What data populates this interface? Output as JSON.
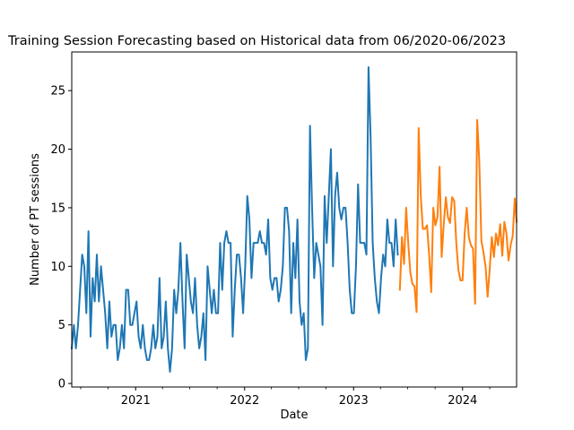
{
  "chart_data": {
    "type": "line",
    "title": "Training Session Forecasting based on Historical data from 06/2020-06/2023",
    "xlabel": "Date",
    "ylabel": "Number of PT sessions",
    "x_ticks": [
      "2021",
      "2022",
      "2023",
      "2024"
    ],
    "y_ticks": [
      "0",
      "5",
      "10",
      "15",
      "20",
      "25"
    ],
    "xlim": [
      "2020-06-01",
      "2024-06-30"
    ],
    "ylim": [
      -0.3,
      28.3
    ],
    "grid": false,
    "legend": "none",
    "series": [
      {
        "color": "#1f77b4",
        "points": [
          [
            "2020-06-01",
            3
          ],
          [
            "2020-06-08",
            5
          ],
          [
            "2020-06-15",
            3
          ],
          [
            "2020-06-22",
            5
          ],
          [
            "2020-06-29",
            8
          ],
          [
            "2020-07-06",
            11
          ],
          [
            "2020-07-13",
            10
          ],
          [
            "2020-07-20",
            6
          ],
          [
            "2020-07-27",
            13
          ],
          [
            "2020-08-03",
            4
          ],
          [
            "2020-08-10",
            9
          ],
          [
            "2020-08-17",
            7
          ],
          [
            "2020-08-24",
            11
          ],
          [
            "2020-08-31",
            7
          ],
          [
            "2020-09-07",
            10
          ],
          [
            "2020-09-14",
            8
          ],
          [
            "2020-09-21",
            6
          ],
          [
            "2020-09-28",
            3
          ],
          [
            "2020-10-05",
            7
          ],
          [
            "2020-10-12",
            4
          ],
          [
            "2020-10-19",
            5
          ],
          [
            "2020-10-26",
            5
          ],
          [
            "2020-11-02",
            2
          ],
          [
            "2020-11-09",
            3
          ],
          [
            "2020-11-16",
            5
          ],
          [
            "2020-11-23",
            3
          ],
          [
            "2020-11-30",
            8
          ],
          [
            "2020-12-07",
            8
          ],
          [
            "2020-12-14",
            5
          ],
          [
            "2020-12-21",
            5
          ],
          [
            "2020-12-28",
            6
          ],
          [
            "2021-01-04",
            7
          ],
          [
            "2021-01-11",
            4
          ],
          [
            "2021-01-18",
            3
          ],
          [
            "2021-01-25",
            5
          ],
          [
            "2021-02-01",
            3
          ],
          [
            "2021-02-08",
            2
          ],
          [
            "2021-02-15",
            2
          ],
          [
            "2021-02-22",
            3
          ],
          [
            "2021-03-01",
            5
          ],
          [
            "2021-03-08",
            3
          ],
          [
            "2021-03-15",
            4
          ],
          [
            "2021-03-22",
            9
          ],
          [
            "2021-03-29",
            3
          ],
          [
            "2021-04-05",
            4
          ],
          [
            "2021-04-12",
            7
          ],
          [
            "2021-04-19",
            3
          ],
          [
            "2021-04-26",
            1
          ],
          [
            "2021-05-03",
            3
          ],
          [
            "2021-05-10",
            8
          ],
          [
            "2021-05-17",
            6
          ],
          [
            "2021-05-24",
            8
          ],
          [
            "2021-05-31",
            12
          ],
          [
            "2021-06-07",
            7
          ],
          [
            "2021-06-14",
            3
          ],
          [
            "2021-06-21",
            11
          ],
          [
            "2021-06-28",
            9
          ],
          [
            "2021-07-05",
            7
          ],
          [
            "2021-07-12",
            6
          ],
          [
            "2021-07-19",
            9
          ],
          [
            "2021-07-26",
            5
          ],
          [
            "2021-08-02",
            3
          ],
          [
            "2021-08-09",
            4
          ],
          [
            "2021-08-16",
            6
          ],
          [
            "2021-08-23",
            2
          ],
          [
            "2021-08-30",
            10
          ],
          [
            "2021-09-06",
            8
          ],
          [
            "2021-09-13",
            6
          ],
          [
            "2021-09-20",
            8
          ],
          [
            "2021-09-27",
            6
          ],
          [
            "2021-10-04",
            6
          ],
          [
            "2021-10-11",
            12
          ],
          [
            "2021-10-18",
            8
          ],
          [
            "2021-10-25",
            12
          ],
          [
            "2021-11-01",
            13
          ],
          [
            "2021-11-08",
            12
          ],
          [
            "2021-11-15",
            12
          ],
          [
            "2021-11-22",
            4
          ],
          [
            "2021-11-29",
            8
          ],
          [
            "2021-12-06",
            11
          ],
          [
            "2021-12-13",
            11
          ],
          [
            "2021-12-20",
            9
          ],
          [
            "2021-12-27",
            6
          ],
          [
            "2022-01-03",
            10
          ],
          [
            "2022-01-10",
            16
          ],
          [
            "2022-01-17",
            14
          ],
          [
            "2022-01-24",
            9
          ],
          [
            "2022-01-31",
            12
          ],
          [
            "2022-02-07",
            12
          ],
          [
            "2022-02-14",
            12
          ],
          [
            "2022-02-21",
            13
          ],
          [
            "2022-02-28",
            12
          ],
          [
            "2022-03-07",
            12
          ],
          [
            "2022-03-14",
            11
          ],
          [
            "2022-03-21",
            14
          ],
          [
            "2022-03-28",
            9
          ],
          [
            "2022-04-04",
            8
          ],
          [
            "2022-04-11",
            9
          ],
          [
            "2022-04-18",
            9
          ],
          [
            "2022-04-25",
            7
          ],
          [
            "2022-05-02",
            8
          ],
          [
            "2022-05-09",
            10
          ],
          [
            "2022-05-16",
            15
          ],
          [
            "2022-05-23",
            15
          ],
          [
            "2022-05-30",
            13
          ],
          [
            "2022-06-06",
            6
          ],
          [
            "2022-06-13",
            12
          ],
          [
            "2022-06-20",
            9
          ],
          [
            "2022-06-27",
            14
          ],
          [
            "2022-07-04",
            7
          ],
          [
            "2022-07-11",
            5
          ],
          [
            "2022-07-18",
            6
          ],
          [
            "2022-07-25",
            2
          ],
          [
            "2022-08-01",
            3
          ],
          [
            "2022-08-08",
            22
          ],
          [
            "2022-08-15",
            15
          ],
          [
            "2022-08-22",
            9
          ],
          [
            "2022-08-29",
            12
          ],
          [
            "2022-09-05",
            11
          ],
          [
            "2022-09-12",
            10
          ],
          [
            "2022-09-19",
            5
          ],
          [
            "2022-09-26",
            16
          ],
          [
            "2022-10-03",
            12
          ],
          [
            "2022-10-10",
            16
          ],
          [
            "2022-10-17",
            20
          ],
          [
            "2022-10-24",
            10
          ],
          [
            "2022-10-31",
            16
          ],
          [
            "2022-11-07",
            18
          ],
          [
            "2022-11-14",
            15
          ],
          [
            "2022-11-21",
            14
          ],
          [
            "2022-11-28",
            15
          ],
          [
            "2022-12-05",
            15
          ],
          [
            "2022-12-12",
            12
          ],
          [
            "2022-12-19",
            8
          ],
          [
            "2022-12-26",
            6
          ],
          [
            "2023-01-02",
            6
          ],
          [
            "2023-01-09",
            10
          ],
          [
            "2023-01-16",
            17
          ],
          [
            "2023-01-23",
            12
          ],
          [
            "2023-01-30",
            12
          ],
          [
            "2023-02-06",
            12
          ],
          [
            "2023-02-13",
            11
          ],
          [
            "2023-02-20",
            27
          ],
          [
            "2023-02-27",
            21
          ],
          [
            "2023-03-06",
            12
          ],
          [
            "2023-03-13",
            9
          ],
          [
            "2023-03-20",
            7
          ],
          [
            "2023-03-27",
            6
          ],
          [
            "2023-04-03",
            9
          ],
          [
            "2023-04-10",
            11
          ],
          [
            "2023-04-17",
            10
          ],
          [
            "2023-04-24",
            14
          ],
          [
            "2023-05-01",
            12
          ],
          [
            "2023-05-08",
            12
          ],
          [
            "2023-05-15",
            10
          ],
          [
            "2023-05-22",
            14
          ],
          [
            "2023-05-29",
            11
          ]
        ]
      },
      {
        "color": "#ff7f0e",
        "points": [
          [
            "2023-06-05",
            8
          ],
          [
            "2023-06-12",
            12.5
          ],
          [
            "2023-06-19",
            10.2
          ],
          [
            "2023-06-26",
            15
          ],
          [
            "2023-07-03",
            12
          ],
          [
            "2023-07-10",
            9.5
          ],
          [
            "2023-07-17",
            8.5
          ],
          [
            "2023-07-24",
            8.3
          ],
          [
            "2023-07-31",
            6.1
          ],
          [
            "2023-08-07",
            21.8
          ],
          [
            "2023-08-14",
            16
          ],
          [
            "2023-08-21",
            13.2
          ],
          [
            "2023-08-28",
            13.2
          ],
          [
            "2023-09-04",
            13.5
          ],
          [
            "2023-09-11",
            11
          ],
          [
            "2023-09-18",
            7.8
          ],
          [
            "2023-09-25",
            15
          ],
          [
            "2023-10-02",
            13.5
          ],
          [
            "2023-10-09",
            14.2
          ],
          [
            "2023-10-16",
            18.5
          ],
          [
            "2023-10-23",
            10.8
          ],
          [
            "2023-10-30",
            13.6
          ],
          [
            "2023-11-06",
            15.9
          ],
          [
            "2023-11-13",
            14.2
          ],
          [
            "2023-11-20",
            13.7
          ],
          [
            "2023-11-27",
            15.9
          ],
          [
            "2023-12-04",
            15.6
          ],
          [
            "2023-12-11",
            12
          ],
          [
            "2023-12-18",
            9.7
          ],
          [
            "2023-12-25",
            8.8
          ],
          [
            "2024-01-01",
            8.8
          ],
          [
            "2024-01-08",
            12.8
          ],
          [
            "2024-01-15",
            15
          ],
          [
            "2024-01-22",
            12.5
          ],
          [
            "2024-01-29",
            11.8
          ],
          [
            "2024-02-05",
            11.5
          ],
          [
            "2024-02-12",
            6.8
          ],
          [
            "2024-02-19",
            22.5
          ],
          [
            "2024-02-26",
            19
          ],
          [
            "2024-03-04",
            12.2
          ],
          [
            "2024-03-11",
            11.2
          ],
          [
            "2024-03-18",
            10
          ],
          [
            "2024-03-25",
            7.4
          ],
          [
            "2024-04-01",
            9.8
          ],
          [
            "2024-04-08",
            12.5
          ],
          [
            "2024-04-15",
            10.8
          ],
          [
            "2024-04-22",
            12.8
          ],
          [
            "2024-04-29",
            11.8
          ],
          [
            "2024-05-06",
            13.6
          ],
          [
            "2024-05-13",
            10.9
          ],
          [
            "2024-05-20",
            13.8
          ],
          [
            "2024-05-27",
            12.8
          ],
          [
            "2024-06-03",
            10.5
          ],
          [
            "2024-06-10",
            11.8
          ],
          [
            "2024-06-17",
            12.6
          ],
          [
            "2024-06-24",
            15.8
          ],
          [
            "2024-06-30",
            13.8
          ]
        ]
      }
    ]
  }
}
